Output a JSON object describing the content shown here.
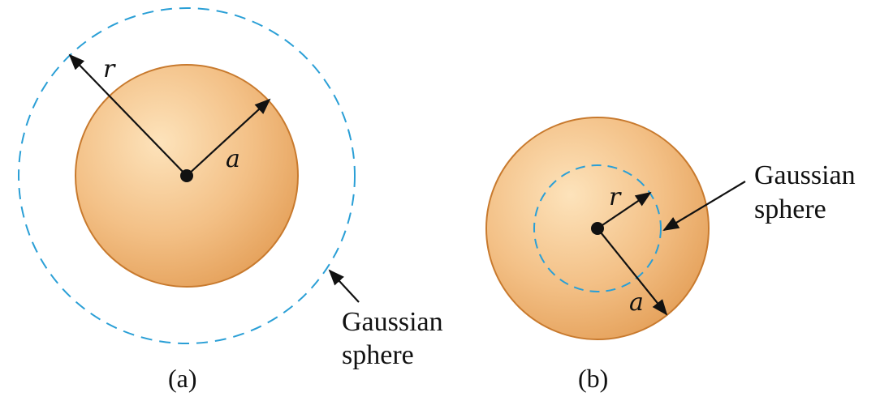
{
  "panels": [
    {
      "id": "a",
      "caption": "(a)",
      "radius_label_outer": "r",
      "radius_label_inner": "a",
      "gaussian_label_line1": "Gaussian",
      "gaussian_label_line2": "sphere"
    },
    {
      "id": "b",
      "caption": "(b)",
      "radius_label_outer": "a",
      "radius_label_inner": "r",
      "gaussian_label_line1": "Gaussian",
      "gaussian_label_line2": "sphere"
    }
  ],
  "colors": {
    "sphere_fill_light": "#fbd9a8",
    "sphere_fill_dark": "#e8a45e",
    "sphere_edge": "#c87a2e",
    "gaussian_dash": "#2a9fd6",
    "ink": "#111111"
  },
  "icons": {
    "arrowhead": "arrowhead-icon",
    "center_point": "center-dot-icon"
  }
}
